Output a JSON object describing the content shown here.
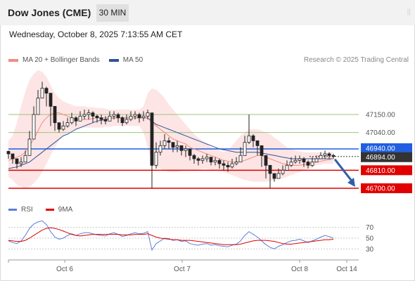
{
  "header": {
    "instrument": "Dow Jones (CME)",
    "timeframe": "30 MIN",
    "corner_mark": "||"
  },
  "datetime": "Wednesday, October 8, 2025 7:13:55 AM CET",
  "legend": {
    "items": [
      {
        "label": "MA 20 + Bollinger Bands",
        "color": "#f28b82"
      },
      {
        "label": "MA 50",
        "color": "#2f5597"
      }
    ],
    "credit": "Research © 2025 Trading Central"
  },
  "rsi_legend": {
    "items": [
      {
        "label": "RSI",
        "color": "#5b7fd6"
      },
      {
        "label": "9MA",
        "color": "#e00000"
      }
    ]
  },
  "colors": {
    "bollinger_fill": "#fde2e2",
    "candle": "#222222",
    "ma50": "#2f5597",
    "ma20": "#f28b82",
    "resistance": "#9dc37a",
    "pivot": "#1f5fe0",
    "support": "#e00000",
    "last_price": "#333333",
    "arrow": "#2f5fa7"
  },
  "chart_data": [
    {
      "type": "candlestick",
      "title": "Dow Jones (CME) 30 MIN",
      "x_tick_labels": [
        "Oct 6",
        "Oct 7",
        "Oct 8",
        "Oct 14"
      ],
      "ylim": [
        46670,
        47420
      ],
      "levels": [
        {
          "label": "47150.00",
          "value": 47150,
          "kind": "resistance"
        },
        {
          "label": "47040.00",
          "value": 47040,
          "kind": "resistance"
        },
        {
          "label": "46940.00",
          "value": 46940,
          "kind": "pivot"
        },
        {
          "label": "46894.00",
          "value": 46894,
          "kind": "last_price"
        },
        {
          "label": "46810.00",
          "value": 46810,
          "kind": "support"
        },
        {
          "label": "46700.00",
          "value": 46700,
          "kind": "support"
        }
      ],
      "projection": {
        "from": 46894,
        "to": 46700,
        "direction": "down"
      },
      "close": [
        46910,
        46880,
        46850,
        46860,
        46900,
        47000,
        47150,
        47250,
        47310,
        47280,
        47200,
        47100,
        47060,
        47080,
        47100,
        47130,
        47110,
        47140,
        47150,
        47160,
        47140,
        47130,
        47120,
        47110,
        47140,
        47150,
        47130,
        47100,
        47120,
        47140,
        47150,
        47130,
        47140,
        47160,
        46840,
        46920,
        46960,
        46990,
        46980,
        46950,
        46960,
        46930,
        46940,
        46900,
        46880,
        46870,
        46880,
        46890,
        46860,
        46870,
        46850,
        46840,
        46830,
        46850,
        46860,
        46900,
        46980,
        47020,
        46990,
        46960,
        46900,
        46840,
        46790,
        46760,
        46790,
        46810,
        46840,
        46860,
        46870,
        46880,
        46860,
        46840,
        46860,
        46880,
        46900,
        46910,
        46900,
        46894
      ],
      "high": [
        46930,
        46900,
        46880,
        46890,
        46930,
        47050,
        47200,
        47300,
        47350,
        47320,
        47230,
        47130,
        47090,
        47110,
        47130,
        47160,
        47140,
        47170,
        47180,
        47180,
        47170,
        47150,
        47150,
        47140,
        47170,
        47170,
        47160,
        47140,
        47150,
        47170,
        47170,
        47160,
        47170,
        47180,
        47160,
        46980,
        46990,
        47030,
        47010,
        46980,
        46990,
        46960,
        46960,
        46930,
        46910,
        46890,
        46900,
        46910,
        46890,
        46890,
        46880,
        46870,
        46860,
        46880,
        46890,
        46950,
        47020,
        47150,
        47030,
        46990,
        46940,
        46880,
        46820,
        46790,
        46820,
        46840,
        46870,
        46890,
        46900,
        46900,
        46890,
        46870,
        46890,
        46900,
        46920,
        46930,
        46920,
        46910
      ],
      "low": [
        46880,
        46850,
        46820,
        46830,
        46870,
        46960,
        47100,
        47200,
        47250,
        47200,
        47080,
        47050,
        47040,
        47050,
        47070,
        47090,
        47080,
        47110,
        47120,
        47120,
        47100,
        47100,
        47090,
        47090,
        47110,
        47120,
        47100,
        47080,
        47090,
        47110,
        47120,
        47100,
        47110,
        47120,
        46700,
        46820,
        46900,
        46940,
        46940,
        46920,
        46920,
        46900,
        46890,
        46870,
        46850,
        46840,
        46850,
        46860,
        46840,
        46840,
        46820,
        46810,
        46800,
        46820,
        46840,
        46870,
        46940,
        46970,
        46950,
        46900,
        46830,
        46760,
        46700,
        46740,
        46760,
        46780,
        46810,
        46830,
        46850,
        46850,
        46830,
        46820,
        46830,
        46860,
        46880,
        46880,
        46880,
        46880
      ],
      "ma20": [
        46870,
        46880,
        46890,
        46900,
        46920,
        46960,
        47000,
        47050,
        47100,
        47130,
        47150,
        47160,
        47160,
        47150,
        47140,
        47130,
        47120,
        47120,
        47120,
        47120,
        47125,
        47130,
        47130,
        47130,
        47130,
        47130,
        47130,
        47130,
        47130,
        47130,
        47130,
        47130,
        47130,
        47130,
        47100,
        47080,
        47060,
        47040,
        47020,
        47000,
        46990,
        46980,
        46970,
        46950,
        46940,
        46930,
        46920,
        46910,
        46900,
        46890,
        46880,
        46870,
        46865,
        46860,
        46860,
        46865,
        46870,
        46880,
        46890,
        46900,
        46900,
        46890,
        46880,
        46870,
        46860,
        46850,
        46845,
        46840,
        46840,
        46840,
        46845,
        46850,
        46855,
        46860,
        46865,
        46870,
        46875,
        46880
      ],
      "ma50": [
        46820,
        46825,
        46830,
        46840,
        46850,
        46860,
        46880,
        46900,
        46920,
        46940,
        46960,
        46980,
        47000,
        47020,
        47030,
        47045,
        47060,
        47070,
        47080,
        47090,
        47100,
        47110,
        47115,
        47120,
        47125,
        47130,
        47130,
        47130,
        47130,
        47130,
        47130,
        47130,
        47130,
        47130,
        47110,
        47090,
        47080,
        47070,
        47060,
        47050,
        47040,
        47030,
        47020,
        47010,
        47000,
        46990,
        46980,
        46970,
        46960,
        46950,
        46940,
        46935,
        46930,
        46925,
        46920,
        46920,
        46920,
        46920,
        46920,
        46920,
        46915,
        46910,
        46905,
        46900,
        46895,
        46890,
        46885,
        46880,
        46880,
        46880,
        46880,
        46880,
        46880,
        46880,
        46880,
        46880,
        46880,
        46880
      ],
      "bb_upper": [
        46990,
        47020,
        47100,
        47200,
        47290,
        47360,
        47400,
        47420,
        47410,
        47380,
        47330,
        47280,
        47250,
        47230,
        47220,
        47210,
        47200,
        47200,
        47200,
        47195,
        47195,
        47190,
        47190,
        47185,
        47180,
        47180,
        47180,
        47180,
        47180,
        47180,
        47180,
        47180,
        47200,
        47280,
        47310,
        47300,
        47280,
        47250,
        47210,
        47180,
        47150,
        47120,
        47090,
        47060,
        47030,
        47010,
        46990,
        46970,
        46950,
        46940,
        46930,
        46920,
        46930,
        46960,
        46990,
        47020,
        47040,
        47060,
        47060,
        47060,
        47050,
        47040,
        47030,
        47010,
        46990,
        46970,
        46950,
        46940,
        46930,
        46925,
        46920,
        46920,
        46920,
        46920,
        46920,
        46920,
        46920,
        46920
      ],
      "bb_lower": [
        46770,
        46750,
        46720,
        46710,
        46700,
        46710,
        46730,
        46760,
        46800,
        46850,
        46900,
        46950,
        46990,
        47020,
        47040,
        47050,
        47060,
        47065,
        47070,
        47070,
        47070,
        47070,
        47070,
        47075,
        47075,
        47080,
        47080,
        47080,
        47080,
        47080,
        47080,
        47080,
        47040,
        46950,
        46860,
        46830,
        46820,
        46810,
        46800,
        46800,
        46800,
        46805,
        46810,
        46810,
        46810,
        46815,
        46820,
        46820,
        46815,
        46810,
        46805,
        46800,
        46790,
        46780,
        46770,
        46760,
        46750,
        46745,
        46740,
        46740,
        46740,
        46740,
        46745,
        46750,
        46755,
        46760,
        46770,
        46780,
        46790,
        46800,
        46810,
        46820,
        46830,
        46840,
        46845,
        46850,
        46850,
        46850
      ]
    },
    {
      "type": "line",
      "title": "",
      "y_tick_labels": [
        "70",
        "50",
        "30"
      ],
      "ylim": [
        15,
        85
      ],
      "series": [
        {
          "name": "RSI",
          "values": [
            45,
            42,
            40,
            45,
            55,
            68,
            76,
            80,
            82,
            75,
            62,
            52,
            48,
            50,
            55,
            58,
            55,
            58,
            60,
            60,
            58,
            56,
            55,
            54,
            58,
            60,
            57,
            53,
            55,
            58,
            60,
            58,
            59,
            62,
            28,
            40,
            45,
            50,
            49,
            46,
            47,
            44,
            45,
            40,
            38,
            37,
            39,
            40,
            37,
            38,
            36,
            35,
            34,
            37,
            39,
            45,
            55,
            62,
            57,
            52,
            45,
            38,
            33,
            30,
            35,
            38,
            42,
            45,
            46,
            48,
            45,
            42,
            45,
            48,
            52,
            55,
            53,
            50
          ]
        },
        {
          "name": "9MA",
          "values": [
            46,
            45,
            44,
            44,
            46,
            50,
            55,
            60,
            65,
            68,
            69,
            68,
            66,
            63,
            60,
            57,
            55,
            54,
            55,
            56,
            57,
            57,
            57,
            57,
            57,
            57,
            57,
            56,
            56,
            56,
            57,
            57,
            57,
            58,
            55,
            52,
            50,
            49,
            48,
            47,
            47,
            46,
            46,
            46,
            45,
            44,
            43,
            42,
            41,
            40,
            39,
            38,
            38,
            38,
            38,
            39,
            41,
            43,
            45,
            46,
            46,
            46,
            45,
            44,
            42,
            40,
            39,
            39,
            40,
            41,
            42,
            43,
            44,
            45,
            46,
            47,
            47,
            48
          ]
        }
      ]
    }
  ]
}
